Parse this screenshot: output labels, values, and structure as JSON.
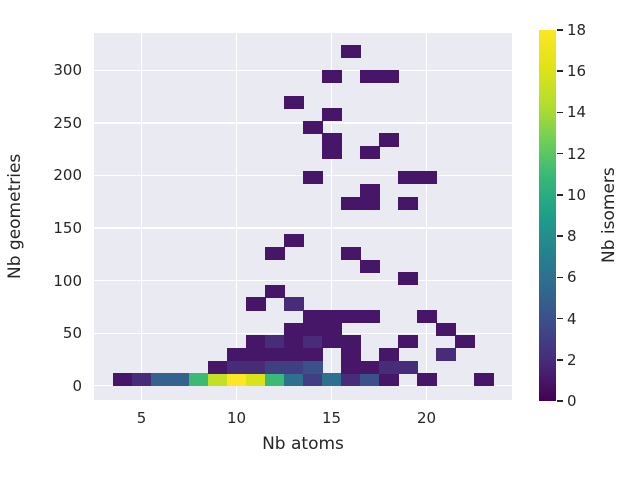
{
  "figure": {
    "background": "#ffffff",
    "plot_background": "#eaeaf2",
    "grid_color": "#ffffff",
    "text_color": "#262626"
  },
  "axes": {
    "xlabel": "Nb atoms",
    "ylabel": "Nb geometries",
    "x_ticks": [
      5,
      10,
      15,
      20
    ],
    "y_ticks": [
      0,
      50,
      100,
      150,
      200,
      250,
      300
    ],
    "xlim": [
      2.5,
      24.5
    ],
    "ylim": [
      -13.5,
      335.5
    ],
    "grid": true
  },
  "colorbar": {
    "label": "Nb isomers",
    "ticks": [
      0,
      2,
      4,
      6,
      8,
      10,
      12,
      14,
      16,
      18
    ],
    "vmin": 0,
    "vmax": 18,
    "colormap": "viridis"
  },
  "chart_data": {
    "type": "heatmap",
    "title": "",
    "xlabel": "Nb atoms",
    "ylabel": "Nb geometries",
    "zlabel": "Nb isomers",
    "x_bin_width": 1,
    "y_bin_height": 12,
    "x_range": [
      3.5,
      23.5
    ],
    "y_range": [
      0,
      324
    ],
    "cells_format": [
      "x_center",
      "y_bottom",
      "value"
    ],
    "cells": [
      [
        4,
        0,
        1
      ],
      [
        5,
        0,
        2
      ],
      [
        6,
        0,
        5
      ],
      [
        7,
        0,
        5
      ],
      [
        8,
        0,
        11
      ],
      [
        9,
        0,
        15
      ],
      [
        10,
        0,
        18
      ],
      [
        11,
        0,
        16
      ],
      [
        12,
        0,
        11
      ],
      [
        13,
        0,
        6
      ],
      [
        14,
        0,
        3
      ],
      [
        15,
        0,
        6
      ],
      [
        16,
        0,
        2
      ],
      [
        17,
        0,
        4
      ],
      [
        18,
        0,
        1
      ],
      [
        20,
        0,
        1
      ],
      [
        23,
        0,
        1
      ],
      [
        9,
        12,
        1
      ],
      [
        10,
        12,
        2
      ],
      [
        11,
        12,
        2
      ],
      [
        12,
        12,
        3
      ],
      [
        13,
        12,
        3
      ],
      [
        14,
        12,
        4
      ],
      [
        16,
        12,
        1
      ],
      [
        17,
        12,
        1
      ],
      [
        18,
        12,
        2
      ],
      [
        19,
        12,
        2
      ],
      [
        10,
        24,
        1
      ],
      [
        11,
        24,
        1
      ],
      [
        12,
        24,
        1
      ],
      [
        13,
        24,
        1
      ],
      [
        14,
        24,
        1
      ],
      [
        16,
        24,
        1
      ],
      [
        18,
        24,
        1
      ],
      [
        21,
        24,
        2
      ],
      [
        11,
        36,
        1
      ],
      [
        12,
        36,
        2
      ],
      [
        13,
        36,
        1
      ],
      [
        14,
        36,
        2
      ],
      [
        15,
        36,
        1
      ],
      [
        16,
        36,
        1
      ],
      [
        19,
        36,
        1
      ],
      [
        22,
        36,
        1
      ],
      [
        13,
        48,
        1
      ],
      [
        14,
        48,
        1
      ],
      [
        15,
        48,
        1
      ],
      [
        21,
        48,
        1
      ],
      [
        14,
        60,
        1
      ],
      [
        15,
        60,
        1
      ],
      [
        16,
        60,
        1
      ],
      [
        17,
        60,
        1
      ],
      [
        20,
        60,
        1
      ],
      [
        11,
        72,
        1
      ],
      [
        13,
        72,
        2
      ],
      [
        12,
        84,
        1
      ],
      [
        19,
        96,
        1
      ],
      [
        17,
        108,
        1
      ],
      [
        12,
        120,
        1
      ],
      [
        16,
        120,
        1
      ],
      [
        13,
        132,
        1
      ],
      [
        16,
        168,
        1
      ],
      [
        17,
        168,
        1
      ],
      [
        19,
        168,
        1
      ],
      [
        17,
        180,
        1
      ],
      [
        14,
        192,
        1
      ],
      [
        19,
        192,
        1
      ],
      [
        20,
        192,
        1
      ],
      [
        15,
        216,
        1
      ],
      [
        17,
        216,
        1
      ],
      [
        15,
        228,
        1
      ],
      [
        18,
        228,
        1
      ],
      [
        14,
        240,
        1
      ],
      [
        15,
        252,
        1
      ],
      [
        13,
        264,
        1
      ],
      [
        15,
        288,
        1
      ],
      [
        17,
        288,
        1
      ],
      [
        18,
        288,
        1
      ],
      [
        16,
        312,
        1
      ]
    ]
  }
}
